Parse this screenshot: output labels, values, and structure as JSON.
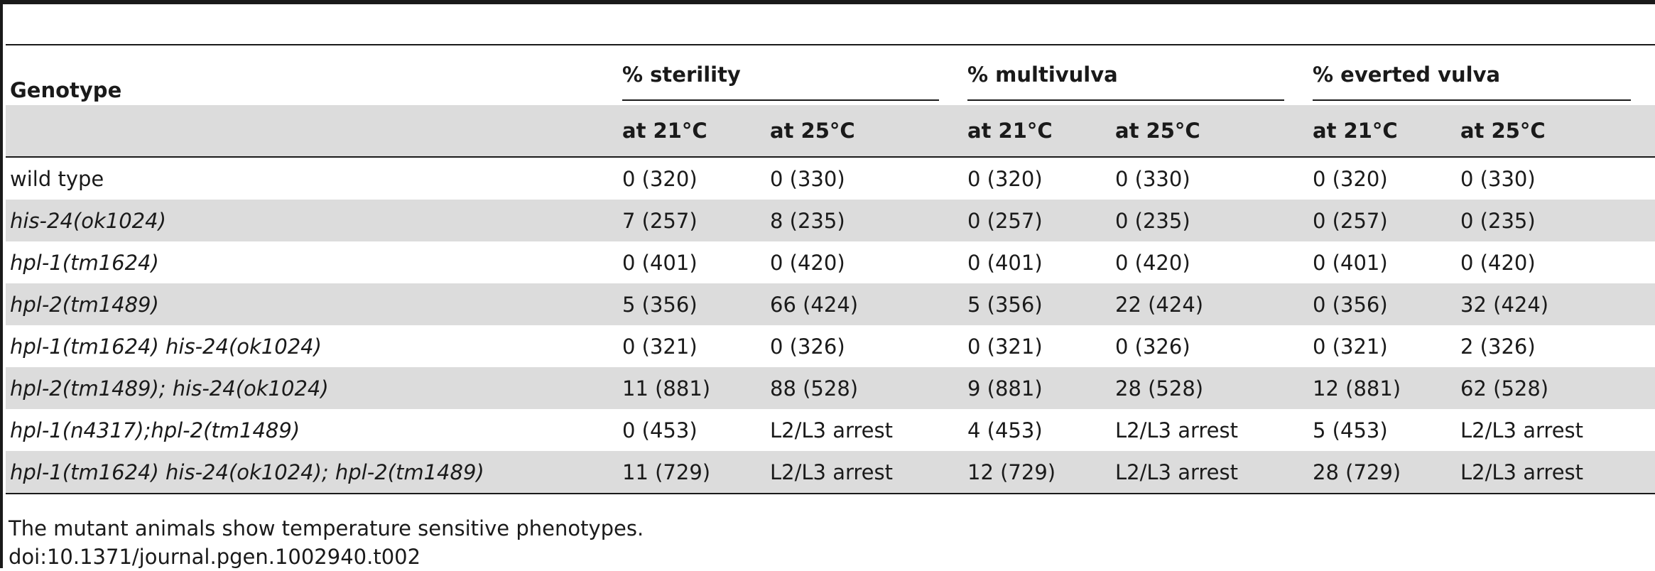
{
  "table": {
    "genotype_header": "Genotype",
    "groups": [
      "% sterility",
      "% multivulva",
      "% everted vulva"
    ],
    "subheaders": [
      "at 21°C",
      "at 25°C",
      "at 21°C",
      "at 25°C",
      "at 21°C",
      "at 25°C"
    ],
    "rows": [
      {
        "genotype": "wild type",
        "italic": false,
        "values": [
          "0 (320)",
          "0 (330)",
          "0 (320)",
          "0 (330)",
          "0 (320)",
          "0 (330)"
        ]
      },
      {
        "genotype": "his-24(ok1024)",
        "italic": true,
        "values": [
          "7 (257)",
          "8 (235)",
          "0 (257)",
          "0 (235)",
          "0 (257)",
          "0 (235)"
        ]
      },
      {
        "genotype": "hpl-1(tm1624)",
        "italic": true,
        "values": [
          "0 (401)",
          "0 (420)",
          "0 (401)",
          "0 (420)",
          "0 (401)",
          "0 (420)"
        ]
      },
      {
        "genotype": "hpl-2(tm1489)",
        "italic": true,
        "values": [
          "5 (356)",
          "66 (424)",
          "5 (356)",
          "22 (424)",
          "0 (356)",
          "32 (424)"
        ]
      },
      {
        "genotype": "hpl-1(tm1624) his-24(ok1024)",
        "italic": true,
        "values": [
          "0 (321)",
          "0 (326)",
          "0 (321)",
          "0 (326)",
          "0 (321)",
          "2 (326)"
        ]
      },
      {
        "genotype": "hpl-2(tm1489); his-24(ok1024)",
        "italic": true,
        "values": [
          "11 (881)",
          "88 (528)",
          "9 (881)",
          "28 (528)",
          "12 (881)",
          "62 (528)"
        ]
      },
      {
        "genotype": "hpl-1(n4317);hpl-2(tm1489)",
        "italic": true,
        "values": [
          "0 (453)",
          "L2/L3 arrest",
          "4 (453)",
          "L2/L3 arrest",
          "5 (453)",
          "L2/L3 arrest"
        ]
      },
      {
        "genotype": "hpl-1(tm1624) his-24(ok1024); hpl-2(tm1489)",
        "italic": true,
        "values": [
          "11 (729)",
          "L2/L3 arrest",
          "12 (729)",
          "L2/L3 arrest",
          "28 (729)",
          "L2/L3 arrest"
        ]
      }
    ]
  },
  "footnote": {
    "caption": "The mutant animals show temperature sensitive phenotypes.",
    "doi": "doi:10.1371/journal.pgen.1002940.t002"
  }
}
